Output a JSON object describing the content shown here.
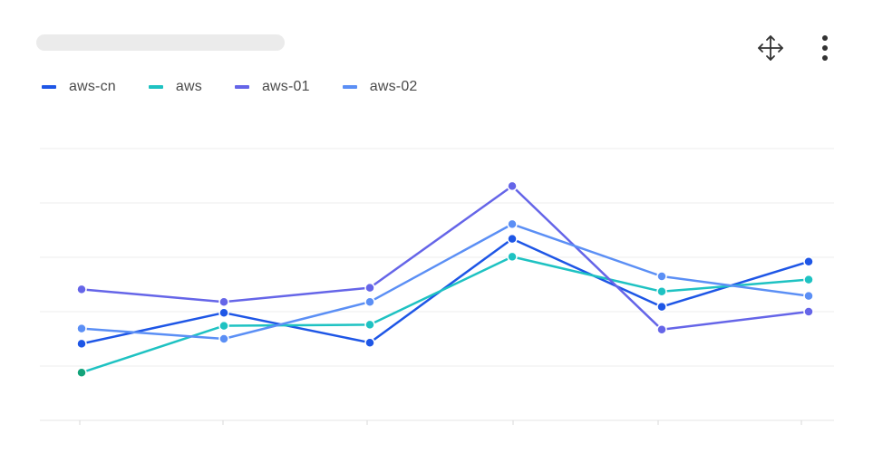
{
  "header": {
    "title": ""
  },
  "toolbar": {
    "move_icon": "move-arrows-icon",
    "more_icon": "more-vertical-icon"
  },
  "chart_data": {
    "type": "line",
    "title": "",
    "xlabel": "",
    "ylabel": "",
    "categories": [
      "",
      "",
      "",
      "",
      "",
      ""
    ],
    "ylim": [
      0,
      5
    ],
    "grid": true,
    "legend_position": "top-left",
    "series": [
      {
        "name": "aws-cn",
        "color": "#1e56e6",
        "values": [
          1.41,
          1.98,
          1.43,
          3.34,
          2.09,
          2.92
        ],
        "point_colors": []
      },
      {
        "name": "aws",
        "color": "#1ec2c2",
        "values": [
          0.88,
          1.74,
          1.76,
          3.01,
          2.37,
          2.59
        ],
        "point_colors": [
          "#13a37a",
          "",
          "",
          "",
          "",
          ""
        ]
      },
      {
        "name": "aws-01",
        "color": "#6565e8",
        "values": [
          2.41,
          2.18,
          2.44,
          4.31,
          1.67,
          2.0
        ],
        "point_colors": []
      },
      {
        "name": "aws-02",
        "color": "#5b8ff5",
        "values": [
          1.69,
          1.5,
          2.18,
          3.61,
          2.65,
          2.29
        ],
        "point_colors": []
      }
    ]
  }
}
